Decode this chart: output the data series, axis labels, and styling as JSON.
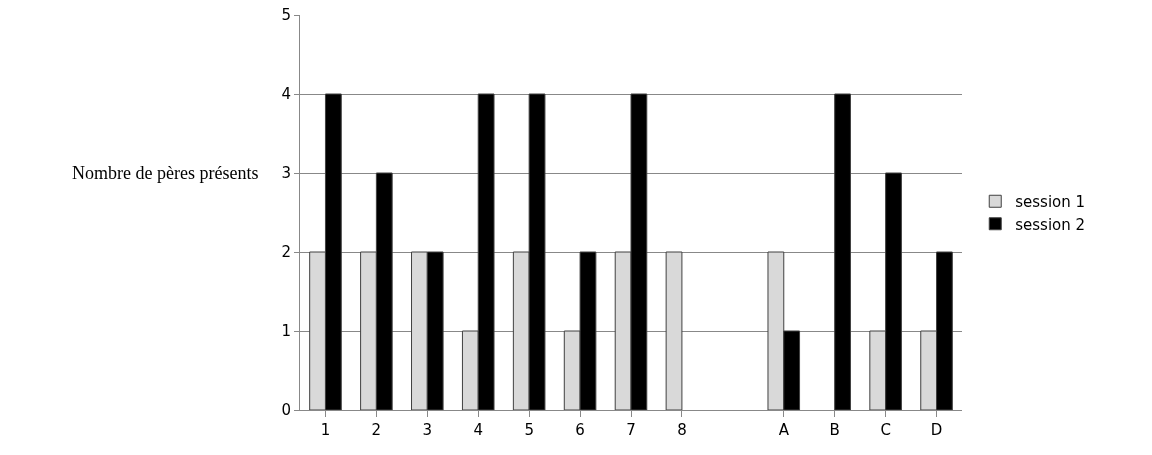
{
  "chart_data": {
    "type": "bar",
    "ylabel": "Nombre de pères présents",
    "categories": [
      "1",
      "2",
      "3",
      "4",
      "5",
      "6",
      "7",
      "8",
      null,
      "A",
      "B",
      "C",
      "D"
    ],
    "series": [
      {
        "name": "session 1",
        "color": "#d9d9d9",
        "values": [
          2,
          2,
          2,
          1,
          2,
          1,
          2,
          2,
          null,
          2,
          0,
          1,
          1
        ]
      },
      {
        "name": "session 2",
        "color": "#000000",
        "values": [
          4,
          3,
          2,
          4,
          4,
          2,
          4,
          0,
          null,
          1,
          4,
          3,
          2
        ]
      }
    ],
    "ylim": [
      0,
      5
    ],
    "yticks": [
      0,
      1,
      2,
      3,
      4,
      5
    ],
    "grid": "y",
    "legend": "right"
  }
}
